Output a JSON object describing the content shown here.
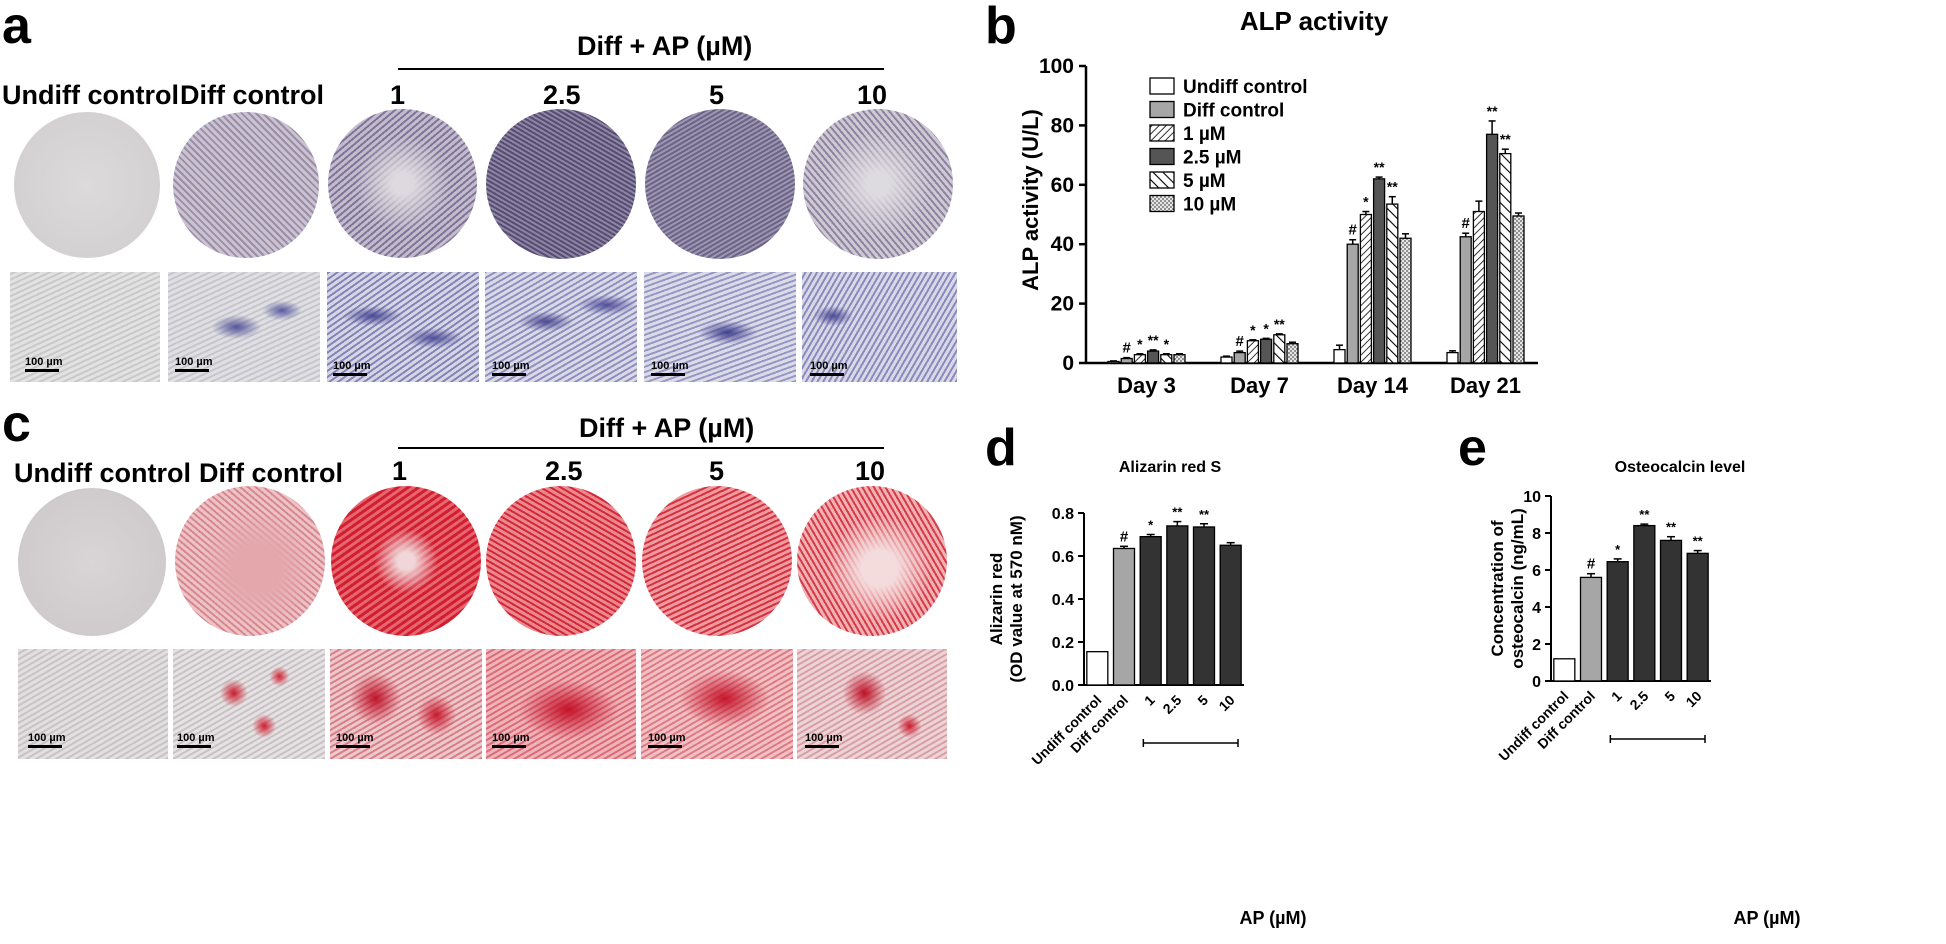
{
  "panels": {
    "a": "a",
    "b": "b",
    "c": "c",
    "d": "d",
    "e": "e"
  },
  "images": {
    "group_header": "Diff + AP (µM)",
    "column_labels": [
      "Undiff control",
      "Diff control",
      "1",
      "2.5",
      "5",
      "10"
    ],
    "scale_label": "100 µm",
    "stain_colors": {
      "alp": "#5a5a9a",
      "alizarin": "#d42a3a",
      "background": "#d8d6d6"
    }
  },
  "chart_data": [
    {
      "type": "bar",
      "title": "ALP activity",
      "xlabel": "",
      "ylabel": "ALP activity  (U/L)",
      "ylim": [
        0,
        100
      ],
      "yticks": [
        "0",
        "20",
        "40",
        "60",
        "80",
        "100"
      ],
      "categories": [
        "Day 3",
        "Day 7",
        "Day 14",
        "Day 21"
      ],
      "legend_position": "top-left",
      "series": [
        {
          "name": "Undiff control",
          "values": [
            0.5,
            2,
            4.5,
            3.5
          ],
          "errors": [
            0.2,
            0.3,
            1.5,
            0.6
          ],
          "marks": [
            "",
            "",
            "",
            ""
          ]
        },
        {
          "name": "Diff control",
          "values": [
            1.5,
            3.5,
            40,
            42.5
          ],
          "errors": [
            0.3,
            0.5,
            1.5,
            1.2
          ],
          "marks": [
            "#",
            "#",
            "#",
            "#"
          ]
        },
        {
          "name": "1 µM",
          "values": [
            2.8,
            7.5,
            50,
            51
          ],
          "errors": [
            0.3,
            0.3,
            1,
            3.5
          ],
          "marks": [
            "*",
            "*",
            "*",
            ""
          ]
        },
        {
          "name": "2.5 µM",
          "values": [
            4,
            8,
            62,
            77
          ],
          "errors": [
            0.4,
            0.3,
            0.6,
            4.5
          ],
          "marks": [
            "**",
            "*",
            "**",
            "**"
          ]
        },
        {
          "name": "5 µM",
          "values": [
            2.8,
            9.5,
            53.5,
            70.5
          ],
          "errors": [
            0.3,
            0.3,
            2.5,
            1.5
          ],
          "marks": [
            "*",
            "**",
            "**",
            "**"
          ]
        },
        {
          "name": "10 µM",
          "values": [
            2.8,
            6.5,
            42,
            49.5
          ],
          "errors": [
            0.3,
            0.5,
            1.5,
            1
          ]
        }
      ],
      "colors": [
        "#ffffff",
        "#a6a6a6",
        "#ffffff",
        "#555555",
        "#ffffff",
        "#dddddd"
      ],
      "patterns": [
        "none",
        "none",
        "hatch-right",
        "none",
        "hatch-left-wide",
        "dots"
      ]
    },
    {
      "type": "bar",
      "title": "Alizarin red S",
      "ylabel": "Alizarin red\n(OD value at 570 nM)",
      "ylim": [
        0,
        0.8
      ],
      "yticks": [
        "0.0",
        "0.2",
        "0.4",
        "0.6",
        "0.8"
      ],
      "categories": [
        "Undiff control",
        "Diff control",
        "1",
        "2.5",
        "5",
        "10"
      ],
      "values": [
        0.155,
        0.635,
        0.69,
        0.74,
        0.735,
        0.65
      ],
      "errors": [
        0,
        0.01,
        0.01,
        0.02,
        0.015,
        0.012
      ],
      "marks": [
        "",
        "#",
        "*",
        "**",
        "**",
        ""
      ],
      "group_label": "AP (µM)"
    },
    {
      "type": "bar",
      "title": "Osteocalcin level",
      "ylabel": "Concentration of\nosteocalcin (ng/mL)",
      "ylim": [
        0,
        10
      ],
      "yticks": [
        "0",
        "2",
        "4",
        "6",
        "8",
        "10"
      ],
      "categories": [
        "Undiff control",
        "Diff control",
        "1",
        "2.5",
        "5",
        "10"
      ],
      "values": [
        1.2,
        5.6,
        6.45,
        8.4,
        7.6,
        6.9
      ],
      "errors": [
        0,
        0.2,
        0.15,
        0.08,
        0.2,
        0.15
      ],
      "marks": [
        "",
        "#",
        "*",
        "**",
        "**",
        "**"
      ],
      "group_label": "AP (µM)"
    }
  ]
}
